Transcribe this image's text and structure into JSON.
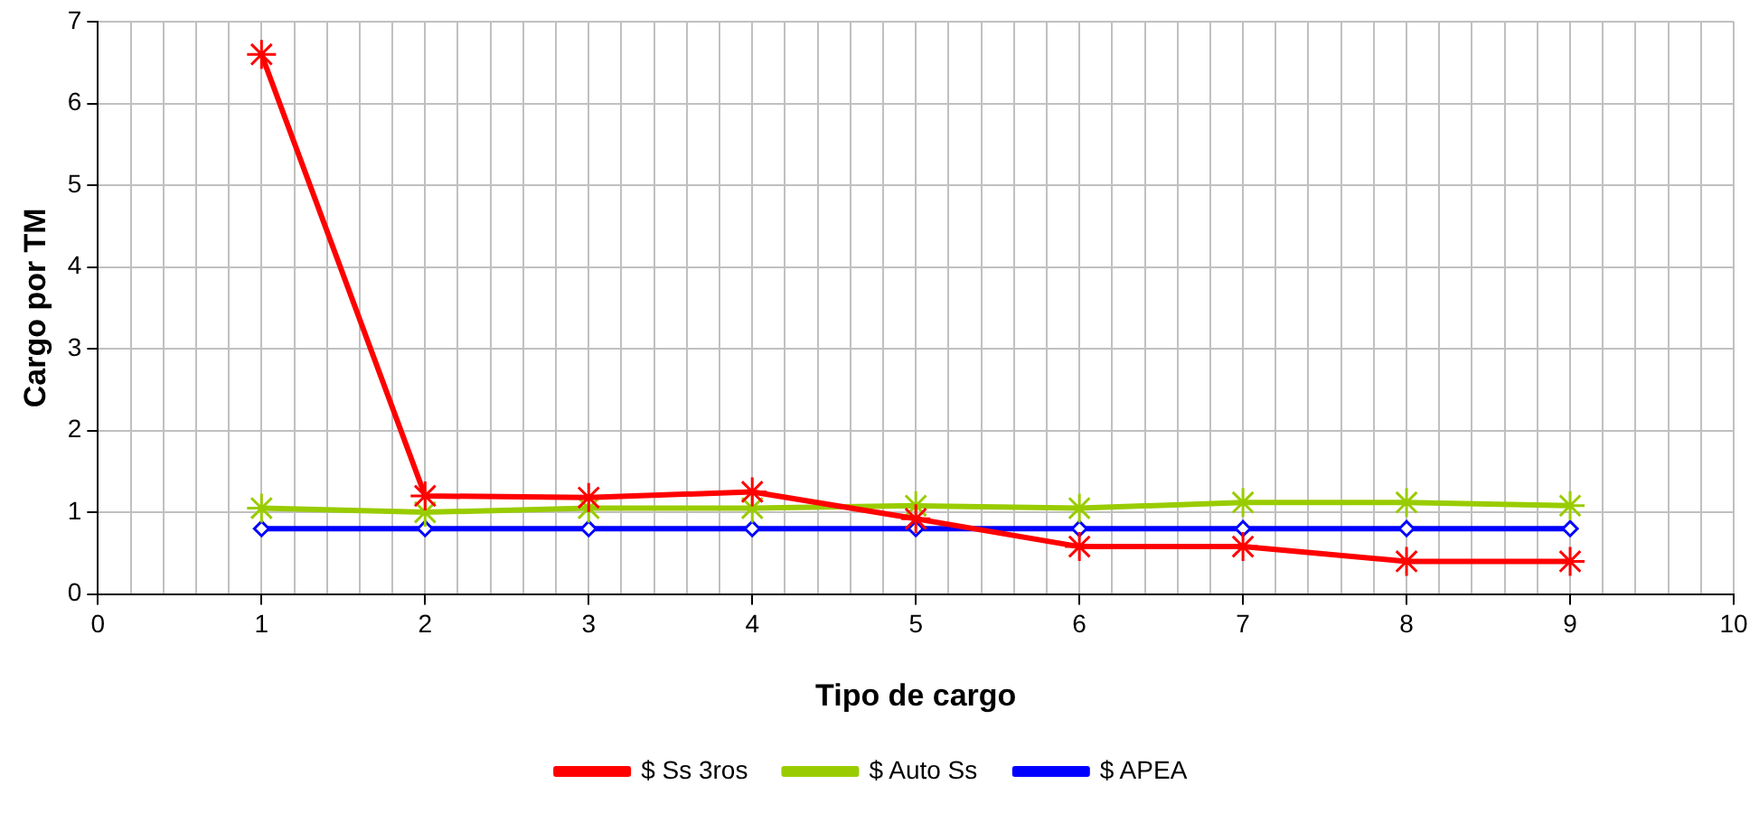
{
  "chart_data": {
    "type": "line",
    "xlabel": "Tipo de cargo",
    "ylabel": "Cargo por TM",
    "x": [
      1,
      2,
      3,
      4,
      5,
      6,
      7,
      8,
      9
    ],
    "series": [
      {
        "name": "$ Ss 3ros",
        "color": "#ff0000",
        "marker": "cross",
        "values": [
          6.6,
          1.2,
          1.18,
          1.25,
          0.92,
          0.58,
          0.58,
          0.4,
          0.4
        ]
      },
      {
        "name": "$ Auto Ss",
        "color": "#99cc00",
        "marker": "cross",
        "values": [
          1.05,
          1.0,
          1.05,
          1.05,
          1.08,
          1.05,
          1.12,
          1.12,
          1.08
        ]
      },
      {
        "name": "$ APEA",
        "color": "#0000ff",
        "marker": "diamond",
        "values": [
          0.8,
          0.8,
          0.8,
          0.8,
          0.8,
          0.8,
          0.8,
          0.8,
          0.8
        ]
      }
    ],
    "xlim": [
      0,
      10
    ],
    "xticks": [
      0,
      {
        "value": 0.2,
        "label": null
      },
      {
        "value": 0.4,
        "label": null
      },
      {
        "value": 0.6,
        "label": null
      },
      {
        "value": 0.8,
        "label": null
      },
      1,
      {
        "value": 1.2,
        "label": null
      },
      {
        "value": 1.4,
        "label": null
      },
      {
        "value": 1.6,
        "label": null
      },
      {
        "value": 1.8,
        "label": null
      },
      2,
      {
        "value": 2.2,
        "label": null
      },
      {
        "value": 2.4,
        "label": null
      },
      {
        "value": 2.6,
        "label": null
      },
      {
        "value": 2.8,
        "label": null
      },
      3,
      {
        "value": 3.2,
        "label": null
      },
      {
        "value": 3.4,
        "label": null
      },
      {
        "value": 3.6,
        "label": null
      },
      {
        "value": 3.8,
        "label": null
      },
      4,
      {
        "value": 4.2,
        "label": null
      },
      {
        "value": 4.4,
        "label": null
      },
      {
        "value": 4.6,
        "label": null
      },
      {
        "value": 4.8,
        "label": null
      },
      5,
      {
        "value": 5.2,
        "label": null
      },
      {
        "value": 5.4,
        "label": null
      },
      {
        "value": 5.6,
        "label": null
      },
      {
        "value": 5.8,
        "label": null
      },
      6,
      {
        "value": 6.2,
        "label": null
      },
      {
        "value": 6.4,
        "label": null
      },
      {
        "value": 6.6,
        "label": null
      },
      {
        "value": 6.8,
        "label": null
      },
      7,
      {
        "value": 7.2,
        "label": null
      },
      {
        "value": 7.4,
        "label": null
      },
      {
        "value": 7.6,
        "label": null
      },
      {
        "value": 7.8,
        "label": null
      },
      8,
      {
        "value": 8.2,
        "label": null
      },
      {
        "value": 8.4,
        "label": null
      },
      {
        "value": 8.6,
        "label": null
      },
      {
        "value": 8.8,
        "label": null
      },
      9,
      {
        "value": 9.2,
        "label": null
      },
      {
        "value": 9.4,
        "label": null
      },
      {
        "value": 9.6,
        "label": null
      },
      {
        "value": 9.8,
        "label": null
      },
      10
    ],
    "ylim": [
      0,
      7
    ],
    "yticks": [
      0,
      1,
      2,
      3,
      4,
      5,
      6,
      7
    ],
    "grid": true,
    "legend": "bottom"
  }
}
